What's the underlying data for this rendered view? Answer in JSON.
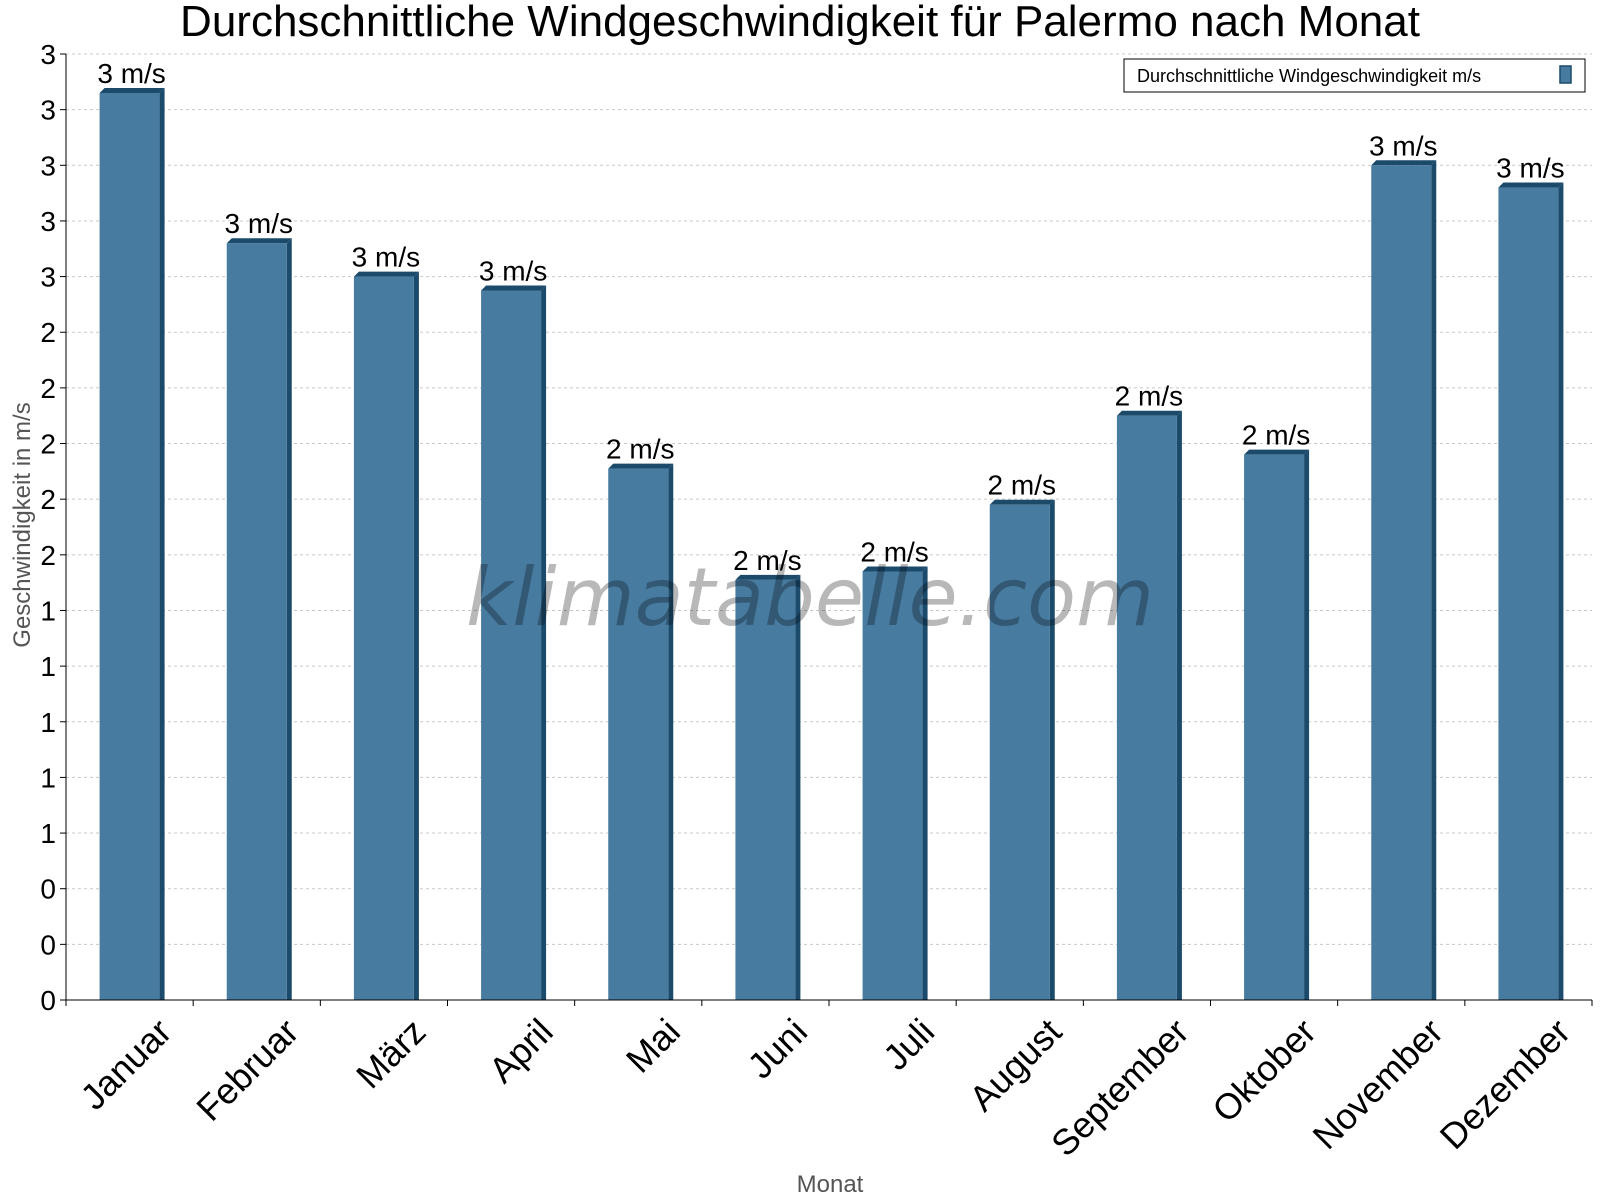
{
  "chart_data": {
    "type": "bar",
    "title": "Durchschnittliche Windgeschwindigkeit für Palermo nach Monat",
    "xlabel": "Monat",
    "ylabel": "Geschwindigkeit in m/s",
    "watermark": "klimatabelle.com",
    "categories": [
      "Januar",
      "Februar",
      "März",
      "April",
      "Mai",
      "Juni",
      "Juli",
      "August",
      "September",
      "Oktober",
      "November",
      "Dezember"
    ],
    "series": [
      {
        "name": "Durchschnittliche Windgeschwindigkeit m/s",
        "color": "#477ba0",
        "values": [
          3.26,
          2.72,
          2.6,
          2.55,
          1.91,
          1.51,
          1.54,
          1.78,
          2.1,
          1.96,
          3.0,
          2.92
        ],
        "labels": [
          "3 m/s",
          "3 m/s",
          "3 m/s",
          "3 m/s",
          "2 m/s",
          "2 m/s",
          "2 m/s",
          "2 m/s",
          "2 m/s",
          "2 m/s",
          "3 m/s",
          "3 m/s"
        ]
      }
    ],
    "ylim": [
      0,
      3.4
    ],
    "yticks": [
      0,
      0.2,
      0.4,
      0.6,
      0.8,
      1.0,
      1.2,
      1.4,
      1.6,
      1.8,
      2.0,
      2.2,
      2.4,
      2.6,
      2.8,
      3.0,
      3.2,
      3.4
    ],
    "ytick_labels": [
      "0",
      "0",
      "0",
      "1",
      "1",
      "1",
      "1",
      "1",
      "2",
      "2",
      "2",
      "2",
      "2",
      "3",
      "3",
      "3",
      "3",
      "3"
    ],
    "grid": true,
    "legend_position": "top-right"
  }
}
